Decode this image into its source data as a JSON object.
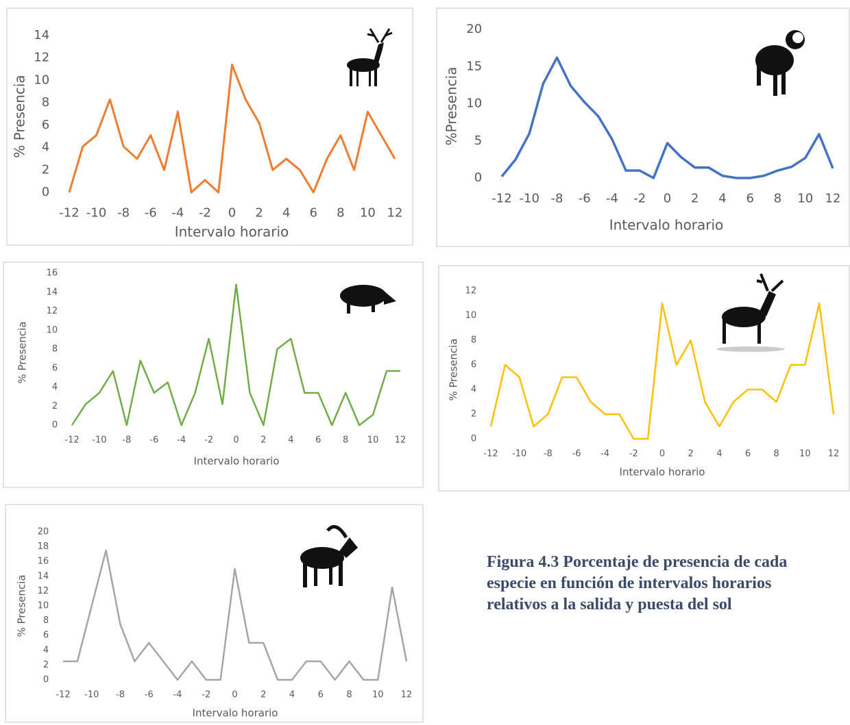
{
  "chart_data": [
    {
      "type": "line",
      "y_label": "% Presencia",
      "x_label": "Intervalo horario",
      "color": "#ed7d31",
      "x": [
        -12,
        -11,
        -10,
        -9,
        -8,
        -7,
        -6,
        -5,
        -4,
        -3,
        -2,
        -1,
        0,
        1,
        2,
        3,
        4,
        5,
        6,
        7,
        8,
        9,
        10,
        11,
        12
      ],
      "values": [
        0,
        4.1,
        5.1,
        8.3,
        4.1,
        3,
        5.1,
        2,
        7.2,
        0,
        1.1,
        0,
        11.4,
        8.3,
        6.2,
        2,
        3,
        2,
        0,
        3,
        5.1,
        2,
        7.2,
        5.1,
        3
      ],
      "xlim": [
        -12,
        12
      ],
      "xticks": [
        -12,
        -10,
        -8,
        -6,
        -4,
        -2,
        0,
        2,
        4,
        6,
        8,
        10,
        12
      ],
      "ylim": [
        0,
        14
      ],
      "yticks": [
        0,
        2,
        4,
        6,
        8,
        10,
        12,
        14
      ]
    },
    {
      "type": "line",
      "y_label": "%Presencia",
      "x_label": "Intervalo horario",
      "color": "#4472c4",
      "x": [
        -12,
        -11,
        -10,
        -9,
        -8,
        -7,
        -6,
        -5,
        -4,
        -3,
        -2,
        -1,
        0,
        1,
        2,
        3,
        4,
        5,
        6,
        7,
        8,
        9,
        10,
        11,
        12
      ],
      "values": [
        0.2,
        2.5,
        6,
        12.7,
        16.2,
        12.4,
        10.2,
        8.3,
        5.2,
        1,
        1,
        0,
        4.7,
        2.8,
        1.4,
        1.4,
        0.3,
        0,
        0,
        0.3,
        1,
        1.5,
        2.7,
        5.9,
        1.3
      ],
      "xlim": [
        -12,
        12
      ],
      "xticks": [
        -12,
        -10,
        -8,
        -6,
        -4,
        -2,
        0,
        2,
        4,
        6,
        8,
        10,
        12
      ],
      "ylim": [
        0,
        20
      ],
      "yticks": [
        0,
        5,
        10,
        15,
        20
      ]
    },
    {
      "type": "line",
      "y_label": "% Presencia",
      "x_label": "Intervalo horario",
      "color": "#70ad47",
      "x": [
        -12,
        -11,
        -10,
        -9,
        -8,
        -7,
        -6,
        -5,
        -4,
        -3,
        -2,
        -1,
        0,
        1,
        2,
        3,
        4,
        5,
        6,
        7,
        8,
        9,
        10,
        11,
        12
      ],
      "values": [
        0,
        2.2,
        3.4,
        5.7,
        0,
        6.8,
        3.4,
        4.5,
        0,
        3.4,
        9.1,
        2.2,
        14.8,
        3.4,
        0,
        8,
        9.1,
        3.4,
        3.4,
        0,
        3.4,
        0,
        1.1,
        5.7,
        5.7
      ],
      "xlim": [
        -12,
        12
      ],
      "xticks": [
        -12,
        -10,
        -8,
        -6,
        -4,
        -2,
        0,
        2,
        4,
        6,
        8,
        10,
        12
      ],
      "ylim": [
        0,
        16
      ],
      "yticks": [
        0,
        2,
        4,
        6,
        8,
        10,
        12,
        14,
        16
      ]
    },
    {
      "type": "line",
      "y_label": "% Presencia",
      "x_label": "Intervalo horario",
      "color": "#ffc000",
      "x": [
        -12,
        -11,
        -10,
        -9,
        -8,
        -7,
        -6,
        -5,
        -4,
        -3,
        -2,
        -1,
        0,
        1,
        2,
        3,
        4,
        5,
        6,
        7,
        8,
        9,
        10,
        11,
        12
      ],
      "values": [
        1,
        6,
        5,
        1,
        2,
        5,
        5,
        3,
        2,
        2,
        0,
        0,
        11,
        6,
        8,
        3,
        1,
        3,
        4,
        4,
        3,
        6,
        6,
        11,
        2
      ],
      "xlim": [
        -12,
        12
      ],
      "xticks": [
        -12,
        -10,
        -8,
        -6,
        -4,
        -2,
        0,
        2,
        4,
        6,
        8,
        10,
        12
      ],
      "ylim": [
        0,
        12
      ],
      "yticks": [
        0,
        2,
        4,
        6,
        8,
        10,
        12
      ]
    },
    {
      "type": "line",
      "y_label": "% Presencia",
      "x_label": "Intervalo horario",
      "color": "#a5a5a5",
      "x": [
        -12,
        -11,
        -10,
        -9,
        -8,
        -7,
        -6,
        -5,
        -4,
        -3,
        -2,
        -1,
        0,
        1,
        2,
        3,
        4,
        5,
        6,
        7,
        8,
        9,
        10,
        11,
        12
      ],
      "values": [
        2.5,
        2.5,
        10,
        17.5,
        7.5,
        2.5,
        5,
        2.5,
        0,
        2.5,
        0,
        0,
        15,
        5,
        5,
        0,
        0,
        2.5,
        2.5,
        0,
        2.5,
        0,
        0,
        12.5,
        2.5
      ],
      "xlim": [
        -12,
        12
      ],
      "xticks": [
        -12,
        -10,
        -8,
        -6,
        -4,
        -2,
        0,
        2,
        4,
        6,
        8,
        10,
        12
      ],
      "ylim": [
        0,
        20
      ],
      "yticks": [
        0,
        2,
        4,
        6,
        8,
        10,
        12,
        14,
        16,
        18,
        20
      ]
    }
  ],
  "caption": "Figura 4.3 Porcentaje de presencia de cada especie en función de intervalos horarios relativos a la salida y puesta del sol"
}
